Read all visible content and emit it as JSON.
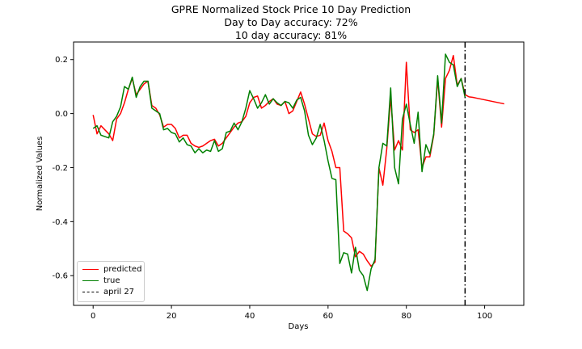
{
  "titles": [
    "GPRE Normalized Stock Price 10 Day Prediction",
    "Day to Day accuracy: 72%",
    "10 day accuracy: 81%"
  ],
  "chart_data": {
    "type": "line",
    "title": "GPRE Normalized Stock Price 10 Day Prediction",
    "subtitle": [
      "Day to Day accuracy: 72%",
      "10 day accuracy: 81%"
    ],
    "xlabel": "Days",
    "ylabel": "Normalized Values",
    "xlim": [
      -5,
      110
    ],
    "ylim": [
      -0.71,
      0.265
    ],
    "xticks": [
      0,
      20,
      40,
      60,
      80,
      100
    ],
    "yticks": [
      -0.6,
      -0.4,
      -0.2,
      0.0,
      0.2
    ],
    "grid": false,
    "legend_position": "lower-left",
    "vline": {
      "x": 95,
      "label": "april 27",
      "color": "#000000",
      "style": "dash-dot"
    },
    "series": [
      {
        "name": "predicted",
        "color": "#ff0000",
        "x": [
          0,
          1,
          2,
          3,
          4,
          5,
          6,
          7,
          8,
          9,
          10,
          11,
          12,
          13,
          14,
          15,
          16,
          17,
          18,
          19,
          20,
          21,
          22,
          23,
          24,
          25,
          26,
          27,
          28,
          29,
          30,
          31,
          32,
          33,
          34,
          35,
          36,
          37,
          38,
          39,
          40,
          41,
          42,
          43,
          44,
          45,
          46,
          47,
          48,
          49,
          50,
          51,
          52,
          53,
          54,
          55,
          56,
          57,
          58,
          59,
          60,
          61,
          62,
          63,
          64,
          65,
          66,
          67,
          68,
          69,
          70,
          71,
          72,
          73,
          74,
          75,
          76,
          77,
          78,
          79,
          80,
          81,
          82,
          83,
          84,
          85,
          86,
          87,
          88,
          89,
          90,
          91,
          92,
          93,
          94,
          95,
          96,
          97,
          98,
          99,
          100,
          101,
          102,
          103,
          104,
          105
        ],
        "y": [
          -0.005,
          -0.075,
          -0.045,
          -0.06,
          -0.075,
          -0.1,
          -0.02,
          0.0,
          0.04,
          0.09,
          0.13,
          0.07,
          0.09,
          0.11,
          0.12,
          0.03,
          0.02,
          -0.005,
          -0.05,
          -0.04,
          -0.04,
          -0.055,
          -0.09,
          -0.08,
          -0.08,
          -0.11,
          -0.12,
          -0.125,
          -0.12,
          -0.11,
          -0.1,
          -0.095,
          -0.12,
          -0.11,
          -0.09,
          -0.07,
          -0.05,
          -0.035,
          -0.03,
          -0.01,
          0.04,
          0.06,
          0.065,
          0.02,
          0.03,
          0.045,
          0.055,
          0.035,
          0.03,
          0.045,
          0.0,
          0.01,
          0.045,
          0.08,
          0.035,
          -0.02,
          -0.075,
          -0.085,
          -0.08,
          -0.035,
          -0.1,
          -0.14,
          -0.2,
          -0.2,
          -0.435,
          -0.445,
          -0.46,
          -0.53,
          -0.51,
          -0.52,
          -0.545,
          -0.565,
          -0.55,
          -0.2,
          -0.265,
          -0.13,
          0.06,
          -0.135,
          -0.1,
          -0.135,
          0.19,
          -0.06,
          -0.07,
          -0.06,
          -0.2,
          -0.16,
          -0.16,
          -0.08,
          0.13,
          -0.05,
          0.13,
          0.16,
          0.215,
          0.105,
          0.13,
          0.07,
          0.062,
          0.06,
          0.057,
          0.054,
          0.051,
          0.048,
          0.045,
          0.042,
          0.039,
          0.036
        ]
      },
      {
        "name": "true",
        "color": "#008000",
        "x": [
          0,
          1,
          2,
          3,
          4,
          5,
          6,
          7,
          8,
          9,
          10,
          11,
          12,
          13,
          14,
          15,
          16,
          17,
          18,
          19,
          20,
          21,
          22,
          23,
          24,
          25,
          26,
          27,
          28,
          29,
          30,
          31,
          32,
          33,
          34,
          35,
          36,
          37,
          38,
          39,
          40,
          41,
          42,
          43,
          44,
          45,
          46,
          47,
          48,
          49,
          50,
          51,
          52,
          53,
          54,
          55,
          56,
          57,
          58,
          59,
          60,
          61,
          62,
          63,
          64,
          65,
          66,
          67,
          68,
          69,
          70,
          71,
          72,
          73,
          74,
          75,
          76,
          77,
          78,
          79,
          80,
          81,
          82,
          83,
          84,
          85,
          86,
          87,
          88,
          89,
          90,
          91,
          92,
          93,
          94,
          95
        ],
        "y": [
          -0.055,
          -0.045,
          -0.08,
          -0.085,
          -0.09,
          -0.03,
          -0.01,
          0.025,
          0.1,
          0.09,
          0.135,
          0.06,
          0.1,
          0.12,
          0.12,
          0.02,
          0.01,
          0.0,
          -0.06,
          -0.055,
          -0.07,
          -0.075,
          -0.105,
          -0.09,
          -0.115,
          -0.12,
          -0.145,
          -0.13,
          -0.145,
          -0.135,
          -0.14,
          -0.1,
          -0.14,
          -0.13,
          -0.07,
          -0.065,
          -0.035,
          -0.06,
          -0.03,
          0.02,
          0.085,
          0.055,
          0.02,
          0.04,
          0.07,
          0.035,
          0.055,
          0.04,
          0.03,
          0.045,
          0.04,
          0.02,
          0.05,
          0.06,
          0.01,
          -0.08,
          -0.115,
          -0.09,
          -0.04,
          -0.1,
          -0.175,
          -0.24,
          -0.245,
          -0.555,
          -0.515,
          -0.52,
          -0.59,
          -0.495,
          -0.58,
          -0.6,
          -0.655,
          -0.575,
          -0.54,
          -0.2,
          -0.11,
          -0.12,
          0.095,
          -0.2,
          -0.26,
          -0.02,
          0.035,
          -0.04,
          -0.11,
          0.005,
          -0.215,
          -0.115,
          -0.15,
          -0.075,
          0.14,
          -0.035,
          0.22,
          0.19,
          0.18,
          0.1,
          0.13,
          0.06
        ]
      }
    ]
  }
}
